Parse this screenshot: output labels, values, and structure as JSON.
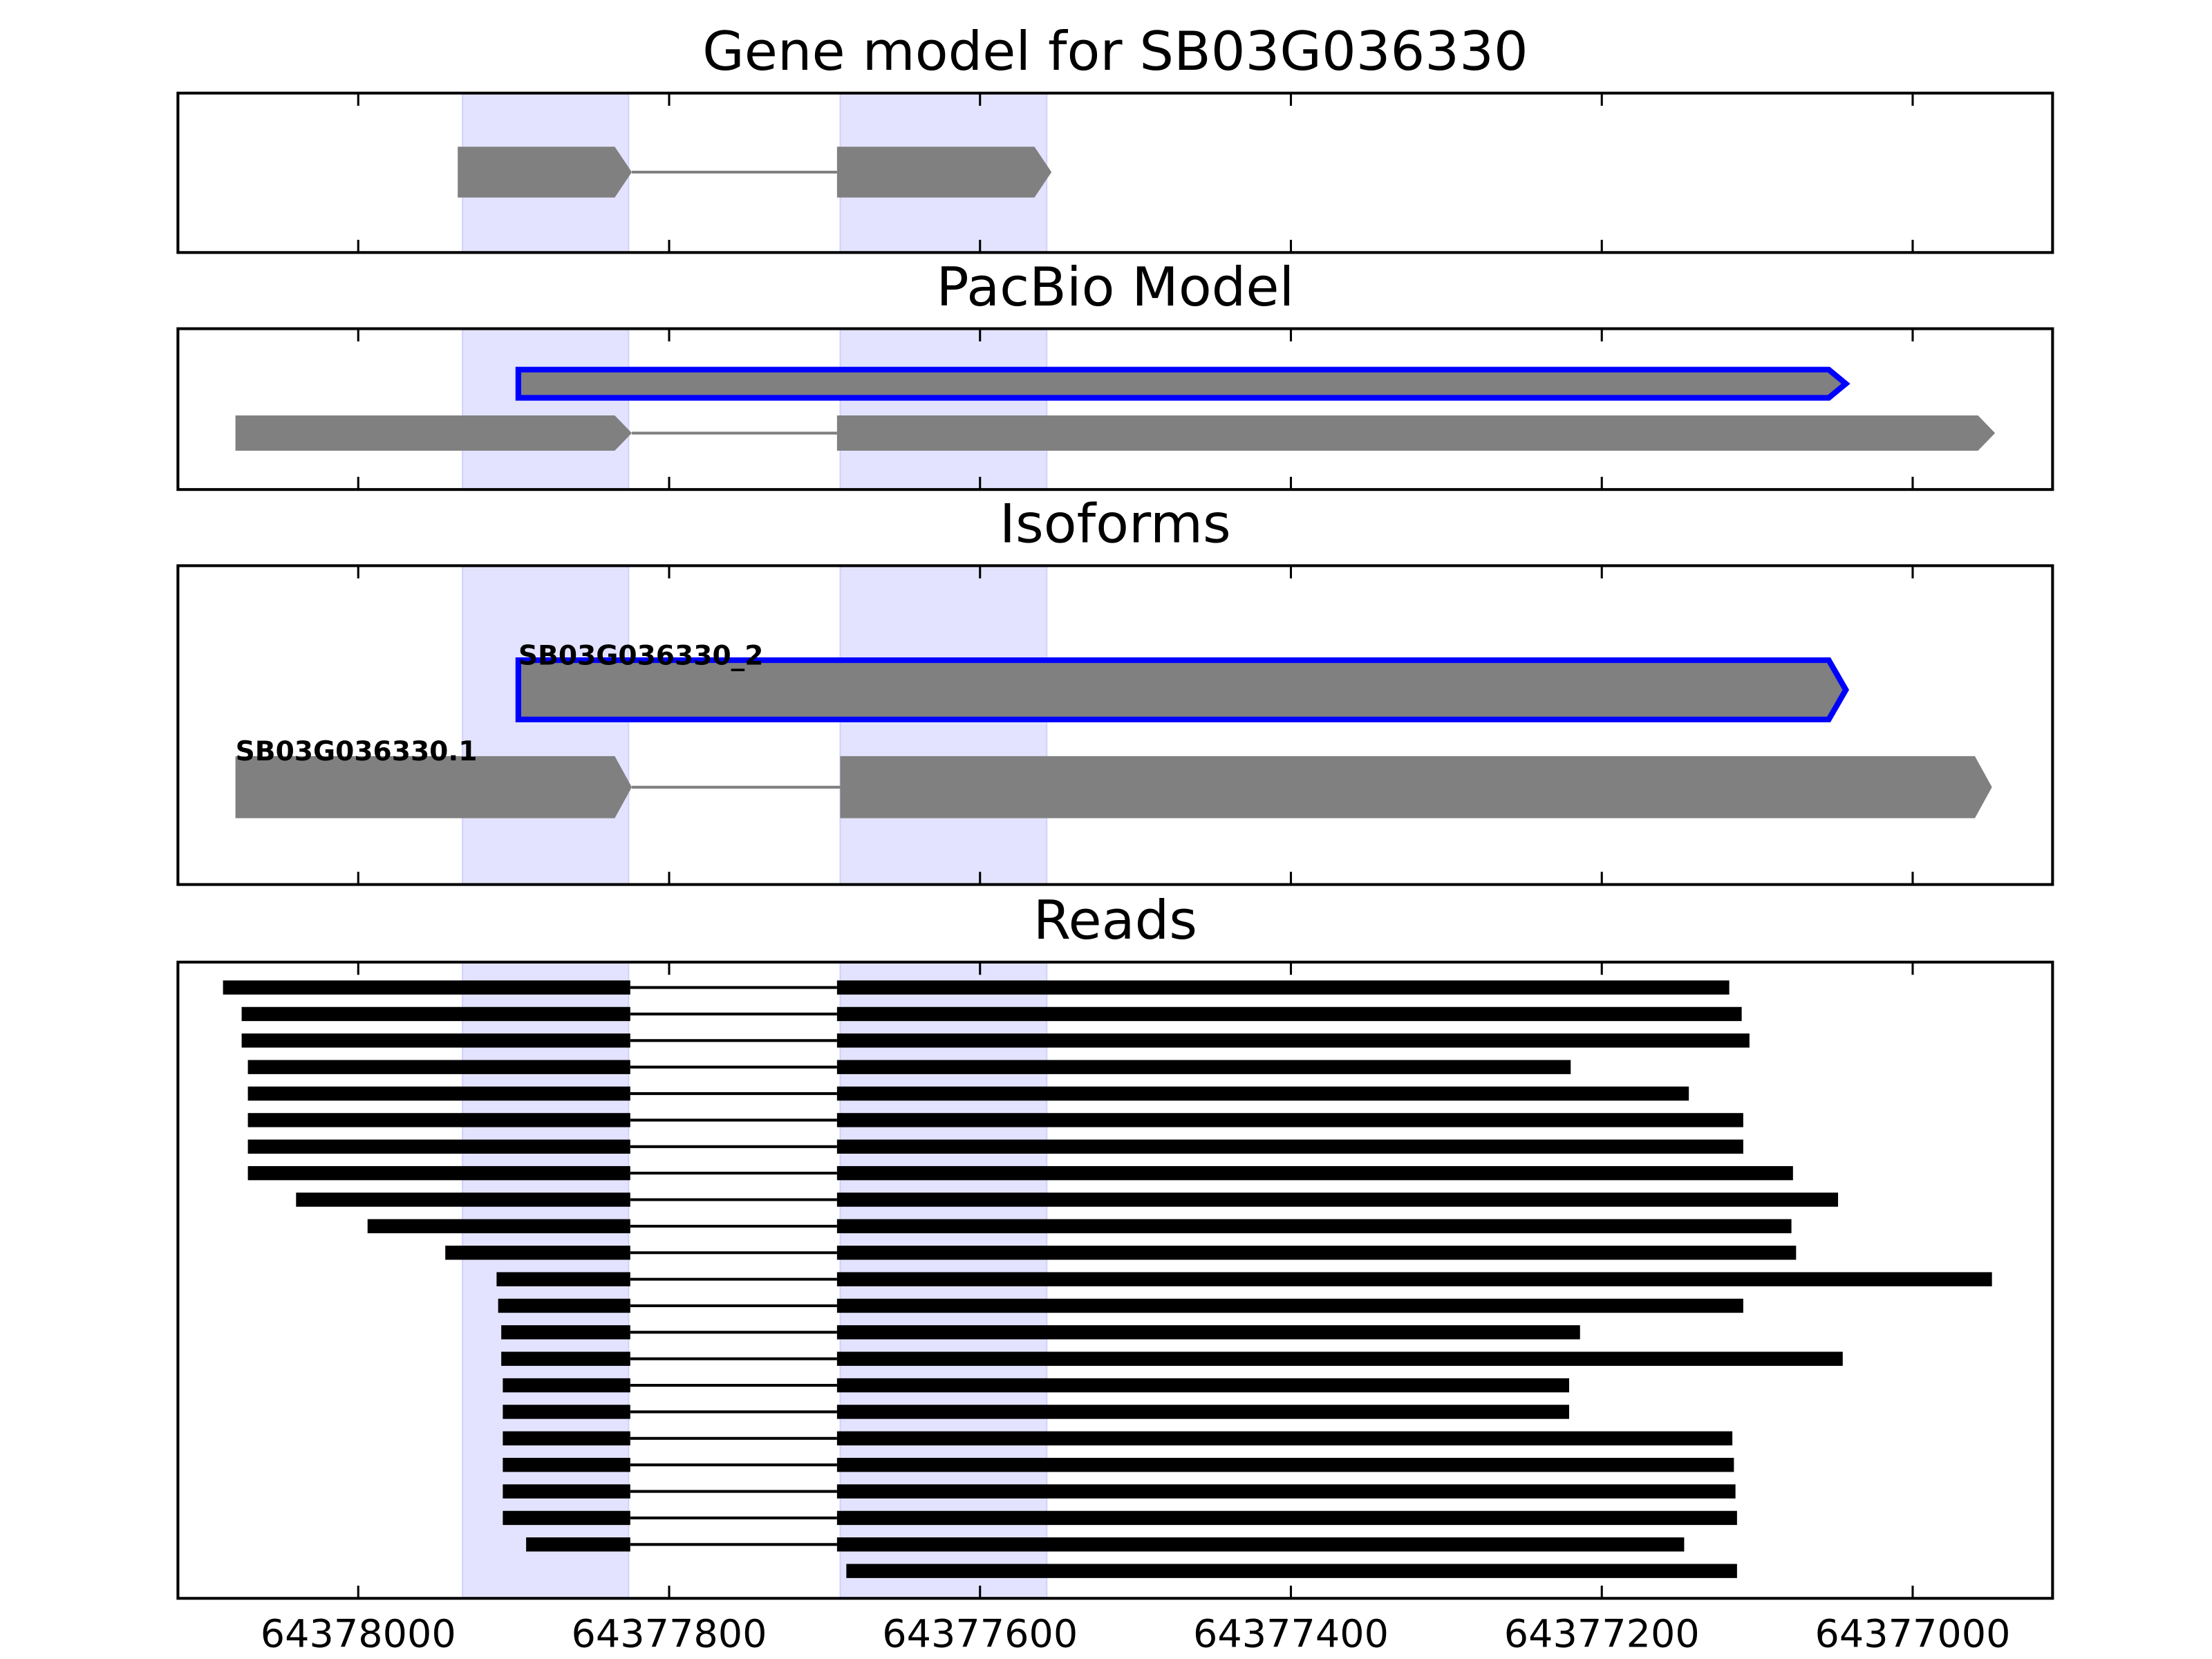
{
  "chart_data": {
    "type": "gene-tracks",
    "xlim": [
      64378116,
      64376910
    ],
    "xticks": [
      64378000,
      64377800,
      64377600,
      64377400,
      64377200,
      64377000
    ],
    "panels": [
      {
        "title": "Gene model for SB03G036330",
        "shaded": [
          [
            64377933,
            64377826
          ],
          [
            64377690,
            64377557
          ]
        ],
        "tracks": [
          {
            "blocks": [
              [
                64377936,
                64377824
              ],
              [
                64377692,
                64377554
              ]
            ]
          }
        ]
      },
      {
        "title": "PacBio Model",
        "shaded": [
          [
            64377933,
            64377826
          ],
          [
            64377690,
            64377557
          ]
        ],
        "tracks": [
          {
            "outline": "#0000ff",
            "blocks": [
              [
                64377897,
                64377043
              ]
            ]
          },
          {
            "blocks": [
              [
                64378079,
                64377824
              ],
              [
                64377692,
                64376947
              ]
            ]
          }
        ]
      },
      {
        "title": "Isoforms",
        "shaded": [
          [
            64377933,
            64377826
          ],
          [
            64377690,
            64377557
          ]
        ],
        "tracks": [
          {
            "label": "SB03G036330_2",
            "outline": "#0000ff",
            "blocks": [
              [
                64377897,
                64377043
              ]
            ]
          },
          {
            "label": "SB03G036330.1",
            "blocks": [
              [
                64378079,
                64377824
              ],
              [
                64377690,
                64376949
              ]
            ]
          }
        ]
      },
      {
        "title": "Reads",
        "shaded": [
          [
            64377933,
            64377826
          ],
          [
            64377690,
            64377557
          ]
        ],
        "tracks": [
          {
            "blocks": [
              [
                64378087,
                64377825
              ],
              [
                64377692,
                64377118
              ]
            ]
          },
          {
            "blocks": [
              [
                64378075,
                64377825
              ],
              [
                64377692,
                64377110
              ]
            ]
          },
          {
            "blocks": [
              [
                64378075,
                64377825
              ],
              [
                64377692,
                64377105
              ]
            ]
          },
          {
            "blocks": [
              [
                64378071,
                64377825
              ],
              [
                64377692,
                64377220
              ]
            ]
          },
          {
            "blocks": [
              [
                64378071,
                64377825
              ],
              [
                64377692,
                64377144
              ]
            ]
          },
          {
            "blocks": [
              [
                64378071,
                64377825
              ],
              [
                64377692,
                64377109
              ]
            ]
          },
          {
            "blocks": [
              [
                64378071,
                64377825
              ],
              [
                64377692,
                64377109
              ]
            ]
          },
          {
            "blocks": [
              [
                64378071,
                64377825
              ],
              [
                64377692,
                64377077
              ]
            ]
          },
          {
            "blocks": [
              [
                64378040,
                64377825
              ],
              [
                64377692,
                64377048
              ]
            ]
          },
          {
            "blocks": [
              [
                64377994,
                64377825
              ],
              [
                64377692,
                64377078
              ]
            ]
          },
          {
            "blocks": [
              [
                64377944,
                64377825
              ],
              [
                64377692,
                64377075
              ]
            ]
          },
          {
            "blocks": [
              [
                64377911,
                64377825
              ],
              [
                64377692,
                64376949
              ]
            ]
          },
          {
            "blocks": [
              [
                64377910,
                64377825
              ],
              [
                64377692,
                64377109
              ]
            ]
          },
          {
            "blocks": [
              [
                64377908,
                64377825
              ],
              [
                64377692,
                64377214
              ]
            ]
          },
          {
            "blocks": [
              [
                64377908,
                64377825
              ],
              [
                64377692,
                64377045
              ]
            ]
          },
          {
            "blocks": [
              [
                64377907,
                64377825
              ],
              [
                64377692,
                64377221
              ]
            ]
          },
          {
            "blocks": [
              [
                64377907,
                64377825
              ],
              [
                64377692,
                64377221
              ]
            ]
          },
          {
            "blocks": [
              [
                64377907,
                64377825
              ],
              [
                64377692,
                64377116
              ]
            ]
          },
          {
            "blocks": [
              [
                64377907,
                64377825
              ],
              [
                64377692,
                64377115
              ]
            ]
          },
          {
            "blocks": [
              [
                64377907,
                64377825
              ],
              [
                64377692,
                64377114
              ]
            ]
          },
          {
            "blocks": [
              [
                64377907,
                64377825
              ],
              [
                64377692,
                64377113
              ]
            ]
          },
          {
            "blocks": [
              [
                64377892,
                64377825
              ],
              [
                64377692,
                64377147
              ]
            ]
          },
          {
            "blocks": [
              [
                64377686,
                64377113
              ]
            ]
          }
        ]
      }
    ]
  }
}
